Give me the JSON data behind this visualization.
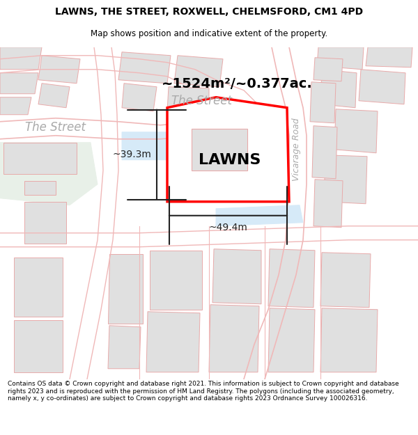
{
  "title_line1": "LAWNS, THE STREET, ROXWELL, CHELMSFORD, CM1 4PD",
  "title_line2": "Map shows position and indicative extent of the property.",
  "footer_text": "Contains OS data © Crown copyright and database right 2021. This information is subject to Crown copyright and database rights 2023 and is reproduced with the permission of HM Land Registry. The polygons (including the associated geometry, namely x, y co-ordinates) are subject to Crown copyright and database rights 2023 Ordnance Survey 100026316.",
  "area_text": "~1524m²/~0.377ac.",
  "property_label": "LAWNS",
  "dim_width": "~49.4m",
  "dim_height": "~39.3m",
  "street_label_top": "The Street",
  "street_label_left": "The Street",
  "road_label_right": "Vicarage Road",
  "map_bg": "#ffffff",
  "property_fill": "#ffffff",
  "property_edge": "#ff0000",
  "building_fill": "#e0e0e0",
  "building_edge": "#e8aaaa",
  "road_line_color": "#f0b8b8",
  "water_fill": "#d6eaf8",
  "green_fill": "#e8f0e8",
  "street_label_color": "#aaaaaa",
  "road_label_color": "#aaaaaa",
  "dim_color": "#222222",
  "title_fontsize": 10,
  "subtitle_fontsize": 8.5,
  "footer_fontsize": 6.5,
  "map_label_fontsize": 12,
  "area_fontsize": 14,
  "property_label_fontsize": 16,
  "dim_fontsize": 10
}
